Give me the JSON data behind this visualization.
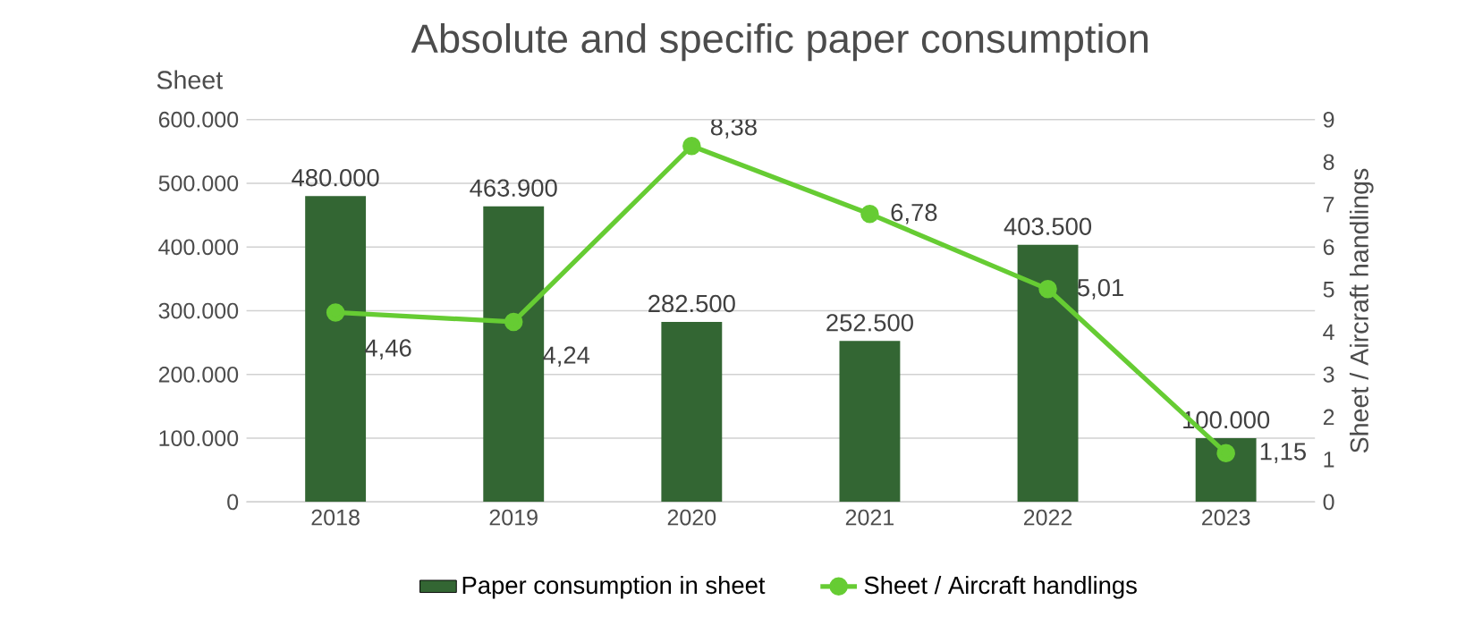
{
  "chart_data": {
    "type": "bar",
    "title": "Absolute and specific paper consumption",
    "ylabel": "Sheet",
    "y2label": "Sheet / Aircraft handlings",
    "categories": [
      "2018",
      "2019",
      "2020",
      "2021",
      "2022",
      "2023"
    ],
    "series": [
      {
        "name": "Paper consumption in sheet",
        "color": "#336633",
        "values": [
          480000,
          463900,
          282500,
          252500,
          403500,
          100000
        ],
        "value_labels": [
          "480.000",
          "463.900",
          "282.500",
          "252.500",
          "403.500",
          "100.000"
        ]
      },
      {
        "name": "Sheet / Aircraft handlings",
        "type": "line",
        "axis": "y2",
        "color": "#66cc33",
        "marker": "circle",
        "values": [
          4.46,
          4.24,
          8.38,
          6.78,
          5.01,
          1.15
        ],
        "value_labels": [
          "4,46",
          "4,24",
          "8,38",
          "6,78",
          "5,01",
          "1,15"
        ]
      }
    ],
    "ylim": [
      0,
      600000
    ],
    "yticks": [
      {
        "value": 0,
        "label": "0"
      },
      {
        "value": 100000,
        "label": "100.000"
      },
      {
        "value": 200000,
        "label": "200.000"
      },
      {
        "value": 300000,
        "label": "300.000"
      },
      {
        "value": 400000,
        "label": "400.000"
      },
      {
        "value": 500000,
        "label": "500.000"
      },
      {
        "value": 600000,
        "label": "600.000"
      }
    ],
    "y2lim": [
      0,
      9
    ],
    "y2ticks": [
      0,
      1,
      2,
      3,
      4,
      5,
      6,
      7,
      8,
      9
    ],
    "grid": "y",
    "legend": "bottom"
  }
}
